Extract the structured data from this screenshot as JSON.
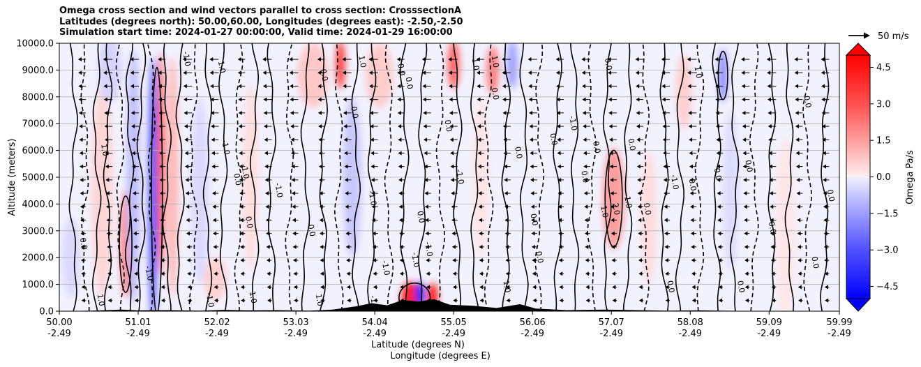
{
  "chart_data": {
    "type": "contour",
    "title_lines": [
      "Omega cross section and wind vectors parallel to cross section: CrosssectionA",
      "Latitudes (degrees north): 50.00,60.00, Longitudes (degrees east): -2.50,-2.50",
      "Simulation start time: 2024-01-27 00:00:00, Valid time: 2024-01-29 16:00:00"
    ],
    "xlabel": "Latitude (degrees N)",
    "xlabel2": "Longitude (degrees E)",
    "ylabel": "Altitude (meters)",
    "xlim": [
      50.0,
      59.99
    ],
    "ylim": [
      0,
      10000
    ],
    "x_ticks": [
      {
        "lat": "50.00",
        "lon": "-2.49",
        "value": 50.0
      },
      {
        "lat": "51.01",
        "lon": "-2.49",
        "value": 51.01
      },
      {
        "lat": "52.02",
        "lon": "-2.49",
        "value": 52.02
      },
      {
        "lat": "53.03",
        "lon": "-2.49",
        "value": 53.03
      },
      {
        "lat": "54.04",
        "lon": "-2.49",
        "value": 54.04
      },
      {
        "lat": "55.05",
        "lon": "-2.49",
        "value": 55.05
      },
      {
        "lat": "56.06",
        "lon": "-2.49",
        "value": 56.06
      },
      {
        "lat": "57.07",
        "lon": "-2.49",
        "value": 57.07
      },
      {
        "lat": "58.08",
        "lon": "-2.49",
        "value": 58.08
      },
      {
        "lat": "59.09",
        "lon": "-2.49",
        "value": 59.09
      },
      {
        "lat": "59.99",
        "lon": "-2.49",
        "value": 59.99
      }
    ],
    "y_ticks": [
      {
        "label": "0.0",
        "value": 0
      },
      {
        "label": "1000.0",
        "value": 1000
      },
      {
        "label": "2000.0",
        "value": 2000
      },
      {
        "label": "3000.0",
        "value": 3000
      },
      {
        "label": "4000.0",
        "value": 4000
      },
      {
        "label": "5000.0",
        "value": 5000
      },
      {
        "label": "6000.0",
        "value": 6000
      },
      {
        "label": "7000.0",
        "value": 7000
      },
      {
        "label": "8000.0",
        "value": 8000
      },
      {
        "label": "9000.0",
        "value": 9000
      },
      {
        "label": "10000.0",
        "value": 10000
      }
    ],
    "grid": "horizontal",
    "colorbar": {
      "label": "Omega Pa/s",
      "range": [
        -5,
        5
      ],
      "extend": "both",
      "ticks": [
        {
          "label": "4.5",
          "value": 4.5
        },
        {
          "label": "3.0",
          "value": 3.0
        },
        {
          "label": "1.5",
          "value": 1.5
        },
        {
          "label": "0.0",
          "value": 0.0
        },
        {
          "label": "−1.5",
          "value": -1.5
        },
        {
          "label": "−3.0",
          "value": -3.0
        },
        {
          "label": "−4.5",
          "value": -4.5
        }
      ],
      "colors": [
        "#0000ff",
        "#ff0000",
        "#f2f2ff",
        "#fff0f0"
      ]
    },
    "quiver_key": {
      "label": "50 m/s",
      "value": 50
    },
    "contour_labels": [
      {
        "text": "0.0",
        "x": 50.28,
        "y": 2500
      },
      {
        "text": "1.0",
        "x": 50.5,
        "y": 400
      },
      {
        "text": "1.0",
        "x": 50.55,
        "y": 6000
      },
      {
        "text": "-1.0",
        "x": 51.6,
        "y": 9400
      },
      {
        "text": "1.0",
        "x": 52.05,
        "y": 9100
      },
      {
        "text": "-1.0",
        "x": 52.1,
        "y": 6100
      },
      {
        "text": "0.0",
        "x": 52.25,
        "y": 4900
      },
      {
        "text": "0.0",
        "x": 52.4,
        "y": 3300
      },
      {
        "text": "-1.0",
        "x": 52.35,
        "y": 5200
      },
      {
        "text": "-1.0",
        "x": 52.78,
        "y": 4500
      },
      {
        "text": "0.0",
        "x": 53.2,
        "y": 3000
      },
      {
        "text": "0.0",
        "x": 53.36,
        "y": 8800
      },
      {
        "text": "0.0",
        "x": 53.75,
        "y": 7400
      },
      {
        "text": "-1.0",
        "x": 53.98,
        "y": 4200
      },
      {
        "text": "0.0",
        "x": 54.35,
        "y": 9000
      },
      {
        "text": "0.0",
        "x": 54.45,
        "y": 8500
      },
      {
        "text": "-1.0",
        "x": 54.53,
        "y": 1900
      },
      {
        "text": "-1.0",
        "x": 54.15,
        "y": 1600
      },
      {
        "text": "-1.0",
        "x": 54.7,
        "y": 2300
      },
      {
        "text": "-1.0",
        "x": 55.1,
        "y": 5000
      },
      {
        "text": "0.0",
        "x": 54.95,
        "y": 6900
      },
      {
        "text": "1.0",
        "x": 55.3,
        "y": 9200
      },
      {
        "text": "1.0",
        "x": 55.55,
        "y": 9300
      },
      {
        "text": "0.0",
        "x": 55.55,
        "y": 8100
      },
      {
        "text": "0.0",
        "x": 55.85,
        "y": 5900
      },
      {
        "text": "0.0",
        "x": 56.05,
        "y": 3400
      },
      {
        "text": "0.0",
        "x": 56.12,
        "y": 2000
      },
      {
        "text": "0.0",
        "x": 56.3,
        "y": 6400
      },
      {
        "text": "-1.0",
        "x": 56.55,
        "y": 7000
      },
      {
        "text": "1.0",
        "x": 55.7,
        "y": 900
      },
      {
        "text": "0.0",
        "x": 56.7,
        "y": 5000
      },
      {
        "text": "0.0",
        "x": 56.85,
        "y": 6100
      },
      {
        "text": "2.0",
        "x": 57.1,
        "y": 3800
      },
      {
        "text": "1.0",
        "x": 56.95,
        "y": 3700
      },
      {
        "text": "-1.0",
        "x": 57.25,
        "y": 4100
      },
      {
        "text": "0.0",
        "x": 57.3,
        "y": 6200
      },
      {
        "text": "0.0",
        "x": 57.5,
        "y": 3800
      },
      {
        "text": "-1.0",
        "x": 57.85,
        "y": 4800
      },
      {
        "text": "0.0",
        "x": 58.08,
        "y": 4700
      },
      {
        "text": "1.0",
        "x": 58.15,
        "y": 8900
      },
      {
        "text": "0.0",
        "x": 58.4,
        "y": 5100
      },
      {
        "text": "0.0",
        "x": 58.8,
        "y": 5400
      },
      {
        "text": "0.0",
        "x": 59.1,
        "y": 3100
      },
      {
        "text": "0.0",
        "x": 59.65,
        "y": 1800
      },
      {
        "text": "0.0",
        "x": 59.85,
        "y": 4300
      },
      {
        "text": "0.0",
        "x": 59.55,
        "y": 7800
      },
      {
        "text": "0.0",
        "x": 58.7,
        "y": 900
      },
      {
        "text": "0.0",
        "x": 57.8,
        "y": 900
      },
      {
        "text": "-1.0",
        "x": 51.9,
        "y": 400
      },
      {
        "text": "1.0",
        "x": 52.45,
        "y": 500
      },
      {
        "text": "1.0",
        "x": 53.3,
        "y": 400
      },
      {
        "text": "-1.0",
        "x": 54.0,
        "y": 300
      },
      {
        "text": "0.0",
        "x": 57.0,
        "y": 9200
      },
      {
        "text": "0.0",
        "x": 54.6,
        "y": 3500
      },
      {
        "text": "1.0",
        "x": 53.85,
        "y": 9300
      },
      {
        "text": "-1.0",
        "x": 51.12,
        "y": 1400
      }
    ]
  }
}
